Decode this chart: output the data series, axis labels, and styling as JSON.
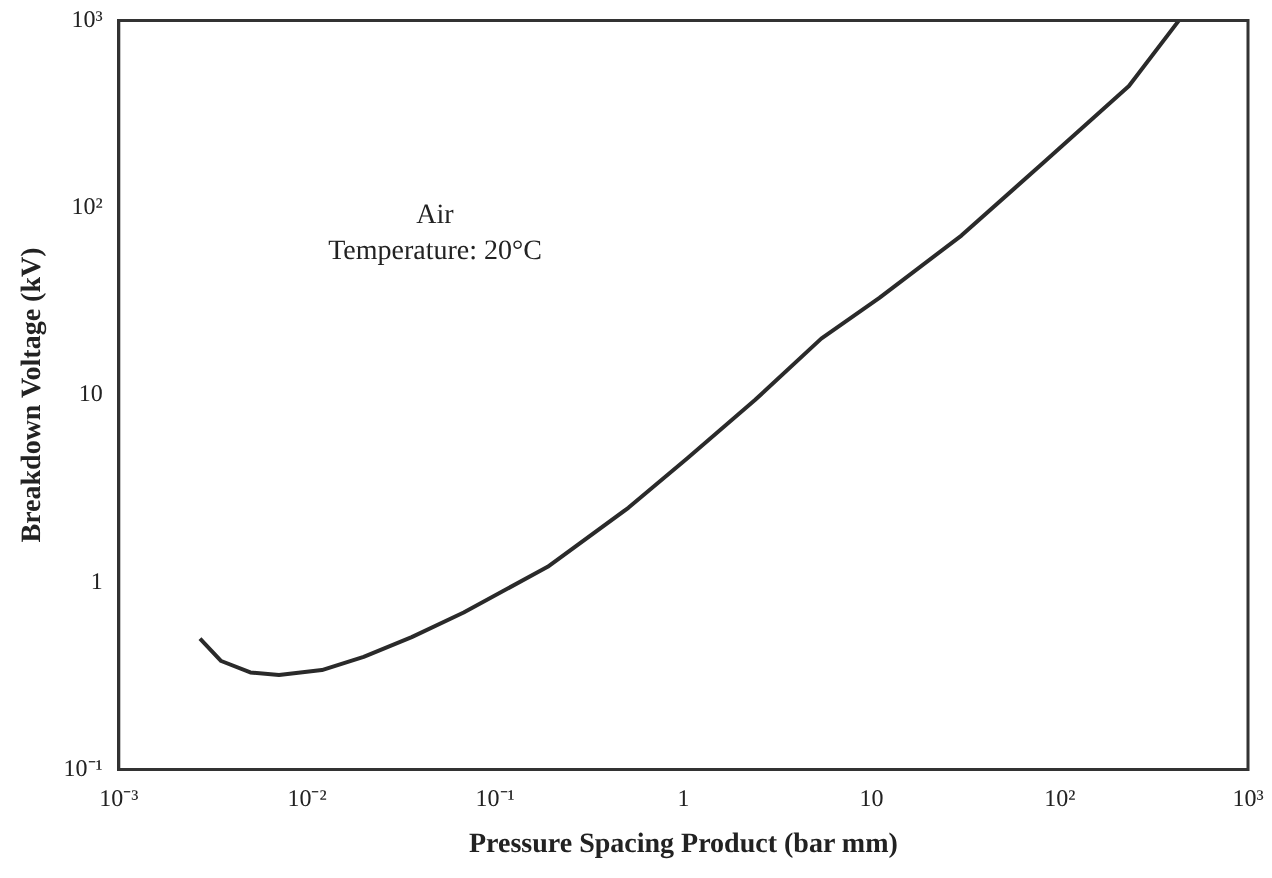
{
  "chart_data": {
    "type": "line",
    "xlabel": "Pressure Spacing Product (bar mm)",
    "ylabel": "Breakdown Voltage (kV)",
    "log": "xy",
    "grid": false,
    "legend": false,
    "marker": "none",
    "line_style": "solid",
    "annotations": [
      "Air",
      "Temperature: 20°C"
    ],
    "xlim": [
      0.001,
      1000
    ],
    "ylim": [
      0.1,
      1000
    ],
    "xticks": [
      {
        "value": 0.001,
        "label": "10⁻³"
      },
      {
        "value": 0.01,
        "label": "10⁻²"
      },
      {
        "value": 0.1,
        "label": "10⁻¹"
      },
      1,
      10,
      {
        "value": 100,
        "label": "10²"
      },
      {
        "value": 1000,
        "label": "10³"
      }
    ],
    "yticks": [
      {
        "value": 0.1,
        "label": "10⁻¹"
      },
      1,
      10,
      {
        "value": 100,
        "label": "10²"
      },
      {
        "value": 1000,
        "label": "10³"
      }
    ],
    "x": [
      0.0027,
      0.0035,
      0.005,
      0.0071,
      0.012,
      0.02,
      0.036,
      0.068,
      0.19,
      0.51,
      1.05,
      2.4,
      5.4,
      11,
      30,
      84,
      233,
      430
    ],
    "series": [
      {
        "color": "#2a2a2a",
        "values": [
          0.5,
          0.38,
          0.33,
          0.32,
          0.34,
          0.4,
          0.51,
          0.69,
          1.21,
          2.5,
          4.6,
          9.4,
          20,
          33,
          71,
          178,
          446,
          1000
        ]
      }
    ]
  }
}
